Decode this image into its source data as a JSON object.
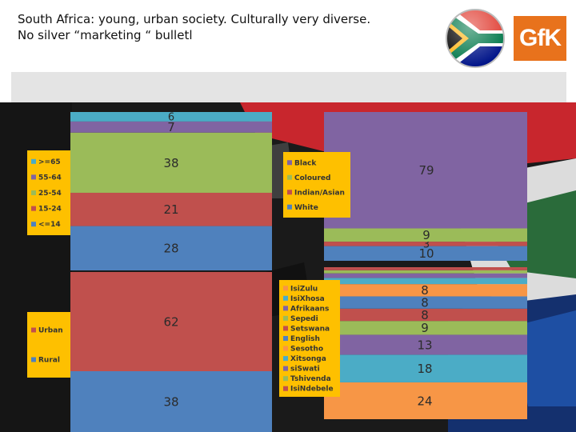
{
  "header": {
    "title_line1": "South Africa: young, urban society. Culturally very diverse.",
    "title_line2": "No silver “marketing “ bulletl",
    "logo_text": "GfK"
  },
  "colors": {
    "blue": "#4f81bd",
    "red": "#c0504d",
    "green": "#9bbb59",
    "purple": "#8064a2",
    "teal": "#4bacc6",
    "orange": "#f79646",
    "legend_bg": "#fec000",
    "brand_orange": "#e8721c"
  },
  "chart_data": [
    {
      "type": "bar",
      "stacked": true,
      "title": "",
      "series": [
        {
          "name": "<=14",
          "values": [
            28
          ],
          "color": "#4f81bd"
        },
        {
          "name": "15-24",
          "values": [
            21
          ],
          "color": "#c0504d"
        },
        {
          "name": "25-54",
          "values": [
            38
          ],
          "color": "#9bbb59"
        },
        {
          "name": "55-64",
          "values": [
            7
          ],
          "color": "#8064a2"
        },
        {
          "name": ">=65",
          "values": [
            6
          ],
          "color": "#4bacc6"
        }
      ],
      "legend_order": [
        ">=65",
        "55-64",
        "25-54",
        "15-24",
        "<=14"
      ],
      "legend_position": "left"
    },
    {
      "type": "bar",
      "stacked": true,
      "title": "",
      "series": [
        {
          "name": "White",
          "values": [
            10
          ],
          "color": "#4f81bd"
        },
        {
          "name": "Indian/Asian",
          "values": [
            3
          ],
          "color": "#c0504d"
        },
        {
          "name": "Coloured",
          "values": [
            9
          ],
          "color": "#9bbb59"
        },
        {
          "name": "Black",
          "values": [
            79
          ],
          "color": "#8064a2"
        }
      ],
      "legend_order": [
        "Black",
        "Coloured",
        "Indian/Asian",
        "White"
      ],
      "legend_position": "left"
    },
    {
      "type": "bar",
      "stacked": true,
      "title": "",
      "series": [
        {
          "name": "Rural",
          "values": [
            38
          ],
          "color": "#4f81bd"
        },
        {
          "name": "Urban",
          "values": [
            62
          ],
          "color": "#c0504d"
        }
      ],
      "legend_order": [
        "Urban",
        "Rural"
      ],
      "legend_position": "left"
    },
    {
      "type": "bar",
      "stacked": true,
      "title": "",
      "series": [
        {
          "name": "IsiZulu",
          "values": [
            24
          ],
          "color": "#f79646",
          "label": "24"
        },
        {
          "name": "IsiXhosa",
          "values": [
            18
          ],
          "color": "#4bacc6",
          "label": "18"
        },
        {
          "name": "Afrikaans",
          "values": [
            13
          ],
          "color": "#8064a2",
          "label": "13"
        },
        {
          "name": "Sepedi",
          "values": [
            9
          ],
          "color": "#9bbb59",
          "label": "9"
        },
        {
          "name": "Setswana",
          "values": [
            8
          ],
          "color": "#c0504d",
          "label": "8"
        },
        {
          "name": "English",
          "values": [
            8
          ],
          "color": "#4f81bd",
          "label": "8"
        },
        {
          "name": "Sesotho",
          "values": [
            8
          ],
          "color": "#f79646",
          "label": "8"
        },
        {
          "name": "Xitsonga",
          "values": [
            4
          ],
          "color": "#4bacc6",
          "label": ""
        },
        {
          "name": "siSwati",
          "values": [
            3
          ],
          "color": "#8064a2",
          "label": ""
        },
        {
          "name": "Tshivenda",
          "values": [
            2
          ],
          "color": "#9bbb59",
          "label": ""
        },
        {
          "name": "IsiNdebele",
          "values": [
            2
          ],
          "color": "#c0504d",
          "label": ""
        }
      ],
      "legend_order": [
        "IsiZulu",
        "IsiXhosa",
        "Afrikaans",
        "Sepedi",
        "Setswana",
        "English",
        "Sesotho",
        "Xitsonga",
        "siSwati",
        "Tshivenda",
        "IsiNdebele"
      ],
      "legend_position": "left"
    }
  ]
}
